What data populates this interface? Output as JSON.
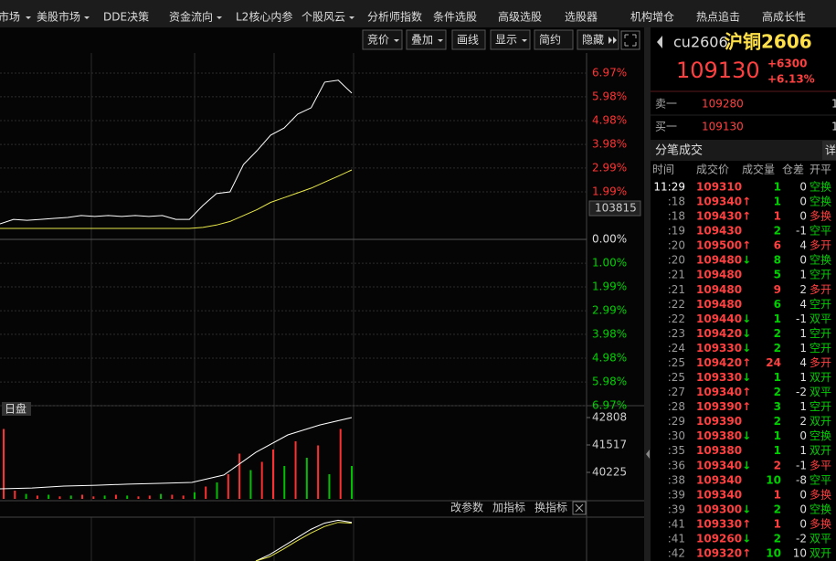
{
  "menu": [
    "市场",
    "美股市场",
    "DDE决策",
    "资金流向",
    "L2核心内参",
    "个股风云",
    "分析师指数",
    "条件选股",
    "高级选股",
    "选股器",
    "机构增仓",
    "热点追击",
    "高成长性"
  ],
  "toolbar": [
    "竞价",
    "叠加",
    "画线",
    "显示",
    "简约",
    "隐藏"
  ],
  "price_chart": {
    "type": "line",
    "ylim": [
      -6.97,
      6.97
    ],
    "yticks": [
      {
        "value": 6.97,
        "label": "6.97%"
      },
      {
        "value": 5.98,
        "label": "5.98%"
      },
      {
        "value": 4.98,
        "label": "4.98%"
      },
      {
        "value": 3.98,
        "label": "3.98%"
      },
      {
        "value": 2.99,
        "label": "2.99%"
      },
      {
        "value": 1.99,
        "label": "1.99%"
      },
      {
        "value": 0,
        "label": "0.00%"
      },
      {
        "value": -1.0,
        "label": "1.00%"
      },
      {
        "value": -1.99,
        "label": "1.99%"
      },
      {
        "value": -2.99,
        "label": "2.99%"
      },
      {
        "value": -3.98,
        "label": "3.98%"
      },
      {
        "value": -4.98,
        "label": "4.98%"
      },
      {
        "value": -5.98,
        "label": "5.98%"
      },
      {
        "value": -6.97,
        "label": "6.97%"
      }
    ],
    "cursor_label": "103815",
    "series": [
      {
        "color": "#ffffff",
        "values": [
          0.65,
          0.84,
          0.8,
          0.84,
          0.88,
          0.92,
          1.0,
          0.96,
          1.0,
          0.96,
          1.0,
          0.96,
          1.0,
          0.84,
          0.84,
          1.42,
          1.92,
          1.99,
          3.14,
          3.72,
          4.37,
          4.67,
          5.25,
          5.52,
          6.59,
          6.67,
          6.13
        ]
      },
      {
        "color": "#e8e84a",
        "values": [
          0.46,
          0.46,
          0.46,
          0.46,
          0.46,
          0.46,
          0.46,
          0.46,
          0.46,
          0.46,
          0.46,
          0.46,
          0.46,
          0.46,
          0.46,
          0.5,
          0.6,
          0.75,
          1.0,
          1.25,
          1.55,
          1.75,
          1.95,
          2.15,
          2.4,
          2.65,
          2.91
        ]
      }
    ]
  },
  "volume_chart": {
    "type": "bar",
    "label": "日盘",
    "ylim": [
      0,
      100
    ],
    "values": [
      85,
      10,
      6,
      4,
      5,
      3,
      4,
      5,
      3,
      4,
      5,
      4,
      3,
      4,
      6,
      5,
      4,
      8,
      15,
      20,
      30,
      55,
      35,
      45,
      60,
      40,
      70,
      50,
      65,
      30,
      85,
      40
    ],
    "colors": [
      "#ff3030",
      "#ff3030",
      "#00c000",
      "#ff3030",
      "#00c000",
      "#ff3030",
      "#00c000",
      "#ff3030",
      "#ff3030",
      "#00c000",
      "#ff3030",
      "#00c000",
      "#ff3030",
      "#ff3030",
      "#00c000",
      "#ff3030",
      "#ff3030",
      "#00c000",
      "#ff3030",
      "#00c000",
      "#ff3030",
      "#ff3030",
      "#00c000",
      "#ff3030",
      "#ff3030",
      "#00c000",
      "#ff3030",
      "#00c000",
      "#ff3030",
      "#00c000",
      "#ff3030",
      "#00c000"
    ],
    "oi_ylim": [
      38977,
      42851
    ],
    "oi_ticks": [
      42808,
      41517,
      40225
    ],
    "oi_values": [
      39450,
      39490,
      39580,
      39620,
      39670,
      39710,
      39750,
      40100,
      41170,
      41990,
      42460,
      42808
    ]
  },
  "indicator_toolbar": [
    "改参数",
    "加指标",
    "换指标"
  ],
  "indicator_chart": {
    "type": "line",
    "ylim": [
      0,
      100
    ],
    "series": [
      {
        "color": "#ffffff",
        "values": [
          0,
          15,
          35,
          55,
          75,
          90,
          97,
          92
        ]
      },
      {
        "color": "#e8e84a",
        "values": [
          0,
          10,
          28,
          48,
          66,
          82,
          92,
          90
        ]
      }
    ]
  },
  "quote": {
    "code": "cu2606",
    "name": "沪铜2606",
    "price": "109130",
    "change": "+6300",
    "change_pct": "+6.13%"
  },
  "orderbook": [
    {
      "label": "卖一",
      "price": "109280",
      "volume": "1"
    },
    {
      "label": "买一",
      "price": "109130",
      "volume": "1"
    }
  ],
  "trades": {
    "title": "分笔成交",
    "tab": "详",
    "columns": [
      "时间",
      "成交价",
      "成交量",
      "仓差",
      "开平"
    ],
    "rows": [
      {
        "time": "11:29",
        "price": 109310,
        "volume": 1,
        "diff": 0,
        "type": "空换"
      },
      {
        "time": ":18",
        "price": 109340,
        "arrow": "↑",
        "volume": 1,
        "diff": 0,
        "type": "空换"
      },
      {
        "time": ":18",
        "price": 109430,
        "arrow": "↑",
        "volume": 1,
        "diff": 0,
        "type": "多换"
      },
      {
        "time": ":19",
        "price": 109430,
        "volume": 2,
        "diff": -1,
        "type": "空平"
      },
      {
        "time": ":20",
        "price": 109500,
        "arrow": "↑",
        "volume": 6,
        "diff": 4,
        "type": "多开"
      },
      {
        "time": ":20",
        "price": 109480,
        "arrow": "↓",
        "volume": 8,
        "diff": 0,
        "type": "空换"
      },
      {
        "time": ":21",
        "price": 109480,
        "volume": 5,
        "diff": 1,
        "type": "空开"
      },
      {
        "time": ":21",
        "price": 109480,
        "volume": 9,
        "diff": 2,
        "type": "多开"
      },
      {
        "time": ":22",
        "price": 109480,
        "volume": 6,
        "diff": 4,
        "type": "空开"
      },
      {
        "time": ":22",
        "price": 109440,
        "arrow": "↓",
        "volume": 1,
        "diff": -1,
        "type": "双平"
      },
      {
        "time": ":23",
        "price": 109420,
        "arrow": "↓",
        "volume": 2,
        "diff": 1,
        "type": "空开"
      },
      {
        "time": ":24",
        "price": 109330,
        "arrow": "↓",
        "volume": 2,
        "diff": 1,
        "type": "空开"
      },
      {
        "time": ":25",
        "price": 109420,
        "arrow": "↑",
        "volume": 24,
        "diff": 4,
        "type": "多开"
      },
      {
        "time": ":25",
        "price": 109330,
        "arrow": "↓",
        "volume": 1,
        "diff": 1,
        "type": "双开"
      },
      {
        "time": ":27",
        "price": 109340,
        "arrow": "↑",
        "volume": 2,
        "diff": -2,
        "type": "双平"
      },
      {
        "time": ":28",
        "price": 109390,
        "arrow": "↑",
        "volume": 3,
        "diff": 1,
        "type": "空开"
      },
      {
        "time": ":29",
        "price": 109390,
        "volume": 2,
        "diff": 2,
        "type": "双开"
      },
      {
        "time": ":30",
        "price": 109380,
        "arrow": "↓",
        "volume": 1,
        "diff": 0,
        "type": "空换"
      },
      {
        "time": ":35",
        "price": 109380,
        "volume": 1,
        "diff": 1,
        "type": "双开"
      },
      {
        "time": ":36",
        "price": 109340,
        "arrow": "↓",
        "volume": 2,
        "diff": -1,
        "type": "多平"
      },
      {
        "time": ":38",
        "price": 109340,
        "volume": 10,
        "diff": -8,
        "type": "空平"
      },
      {
        "time": ":39",
        "price": 109340,
        "volume": 1,
        "diff": 0,
        "type": "多换"
      },
      {
        "time": ":39",
        "price": 109300,
        "arrow": "↓",
        "volume": 2,
        "diff": 0,
        "type": "空换"
      },
      {
        "time": ":41",
        "price": 109330,
        "arrow": "↑",
        "volume": 1,
        "diff": 0,
        "type": "多换"
      },
      {
        "time": ":41",
        "price": 109260,
        "arrow": "↓",
        "volume": 2,
        "diff": -2,
        "type": "双平"
      },
      {
        "time": ":42",
        "price": 109320,
        "arrow": "↑",
        "volume": 10,
        "diff": 10,
        "type": "双开"
      }
    ]
  }
}
